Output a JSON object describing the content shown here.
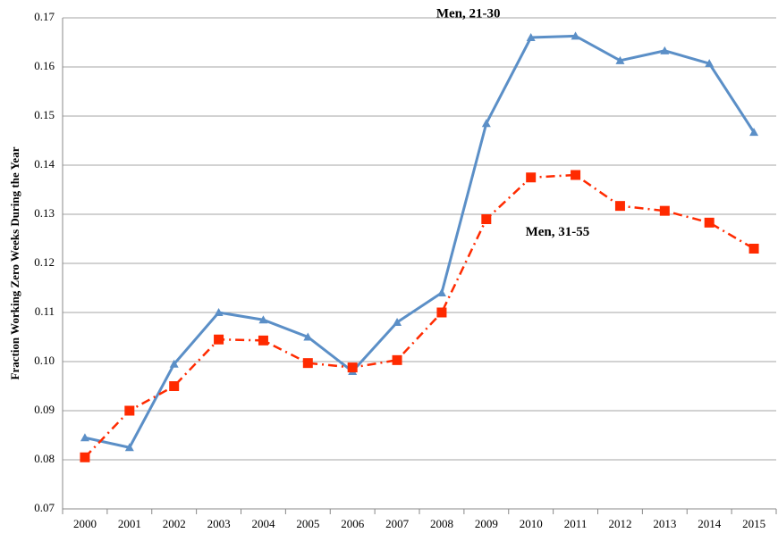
{
  "chart_data": {
    "type": "line",
    "y_label": "Fraction Working Zero Weeks During the Year",
    "categories": [
      "2000",
      "2001",
      "2002",
      "2003",
      "2004",
      "2005",
      "2006",
      "2007",
      "2008",
      "2009",
      "2010",
      "2011",
      "2012",
      "2013",
      "2014",
      "2015"
    ],
    "series": [
      {
        "name": "Men, 21-30",
        "color": "#5b8fc7",
        "marker": "triangle",
        "dash": "solid",
        "values": [
          0.0845,
          0.0825,
          0.0995,
          0.11,
          0.1085,
          0.105,
          0.098,
          0.108,
          0.114,
          0.1485,
          0.166,
          0.1663,
          0.1613,
          0.1633,
          0.1607,
          0.1467
        ]
      },
      {
        "name": "Men, 31-55",
        "color": "#ff2a00",
        "marker": "square",
        "dash": "dashdot",
        "values": [
          0.0805,
          0.09,
          0.095,
          0.1045,
          0.1043,
          0.0997,
          0.0988,
          0.1003,
          0.11,
          0.129,
          0.1375,
          0.138,
          0.1317,
          0.1307,
          0.1283,
          0.123
        ]
      }
    ],
    "ylim": [
      0.07,
      0.17
    ],
    "yticks": [
      0.07,
      0.08,
      0.09,
      {
        "value": 0.1,
        "label": "0.10"
      },
      0.11,
      0.12,
      0.13,
      0.14,
      0.15,
      0.16,
      0.17
    ],
    "grid": true
  }
}
